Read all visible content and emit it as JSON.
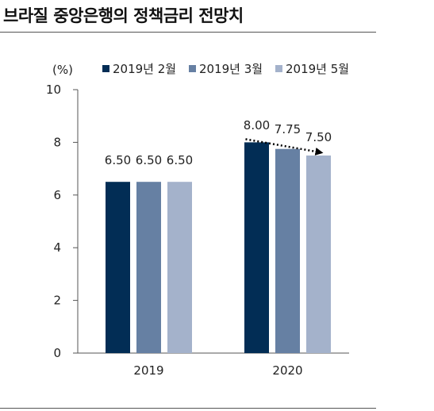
{
  "title": "브라질 중앙은행의 정책금리 전망치",
  "chart_data": {
    "type": "bar",
    "title": "브라질 중앙은행의 정책금리 전망치",
    "ylabel": "(%)",
    "xlabel": "",
    "ylim": [
      0,
      10
    ],
    "yticks": [
      0,
      2,
      4,
      6,
      8,
      10
    ],
    "categories": [
      "2019",
      "2020"
    ],
    "legend_position": "top",
    "grid": false,
    "series": [
      {
        "name": "2019년 2월",
        "color": "#022d55",
        "values": [
          6.5,
          8.0
        ],
        "labels": [
          "6.50",
          "8.00"
        ]
      },
      {
        "name": "2019년 3월",
        "color": "#6680a3",
        "values": [
          6.5,
          7.75
        ],
        "labels": [
          "6.50",
          "7.75"
        ]
      },
      {
        "name": "2019년 5월",
        "color": "#a4b2cb",
        "values": [
          6.5,
          7.5
        ],
        "labels": [
          "6.50",
          "7.50"
        ]
      }
    ],
    "annotations": [
      {
        "type": "dotted-arrow",
        "category": "2020",
        "from_series": 0,
        "to_series": 2
      }
    ]
  }
}
